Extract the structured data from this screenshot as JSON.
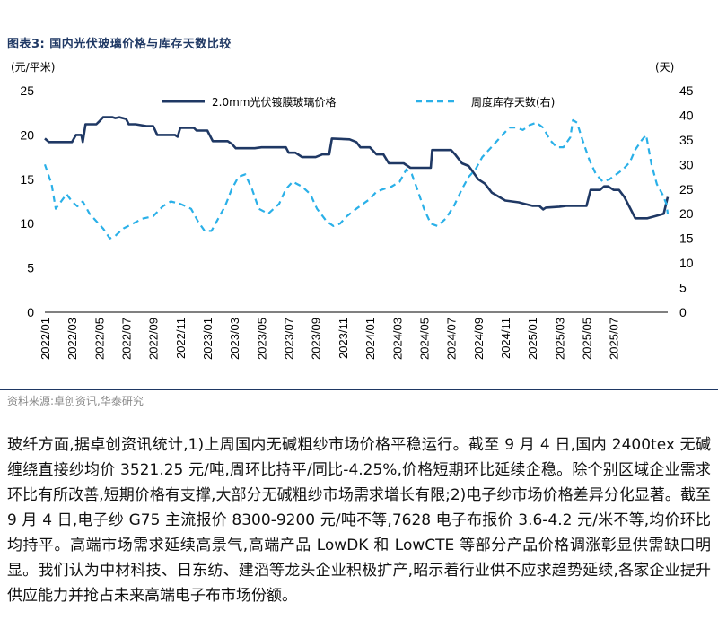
{
  "figure_title": "图表3:  国内光伏玻璃价格与库存天数比较",
  "source": "资料来源:卓创资讯,华泰研究",
  "body_text": "玻纤方面,据卓创资讯统计,1)上周国内无碱粗纱市场价格平稳运行。截至 9 月 4 日,国内 2400tex 无碱缠绕直接纱均价 3521.25 元/吨,周环比持平/同比-4.25%,价格短期环比延续企稳。除个别区域企业需求环比有所改善,短期价格有支撑,大部分无碱粗纱市场需求增长有限;2)电子纱市场价格差异分化显著。截至 9 月 4 日,电子纱 G75 主流报价 8300-9200 元/吨不等,7628 电子布报价 3.6-4.2 元/米不等,均价环比均持平。高端市场需求延续高景气,高端产品 LowDK 和 LowCTE 等部分产品价格调涨彰显供需缺口明显。我们认为中材科技、日东纺、建滔等龙头企业积极扩产,昭示着行业供不应求趋势延续,各家企业提升供应能力并抢占未来高端电子布市场份额。",
  "colors": {
    "title": "#1f3864",
    "price_line": "#1f3864",
    "days_line": "#2ab0e8",
    "divider": "#1f3864",
    "source_text": "#8a8a8a"
  },
  "chart_data": {
    "type": "line",
    "y_left_unit": "(元/平米)",
    "y_right_unit": "(天)",
    "y_left_ticks": [
      "0",
      "5",
      "10",
      "15",
      "20",
      "25"
    ],
    "y_right_ticks": [
      "0",
      "5",
      "10",
      "15",
      "20",
      "25",
      "30",
      "35",
      "40",
      "45"
    ],
    "ylim_left": [
      0,
      25
    ],
    "ylim_right": [
      0,
      45
    ],
    "x_ticks": [
      "2022/01",
      "2022/03",
      "2022/05",
      "2022/07",
      "2022/09",
      "2022/11",
      "2023/01",
      "2023/03",
      "2023/05",
      "2023/07",
      "2023/09",
      "2023/11",
      "2024/01",
      "2024/03",
      "2024/05",
      "2024/07",
      "2024/09",
      "2024/11",
      "2025/01",
      "2025/03",
      "2025/05",
      "2025/07"
    ],
    "x_range_months": [
      0,
      45
    ],
    "legend_position": "top",
    "grid": false,
    "series": [
      {
        "name": "2.0mm光伏镀膜玻璃价格",
        "axis": "left",
        "style": "solid",
        "points": [
          [
            0.0,
            19.6
          ],
          [
            0.3,
            19.2
          ],
          [
            1.0,
            19.2
          ],
          [
            1.5,
            19.2
          ],
          [
            2.0,
            19.2
          ],
          [
            2.3,
            20.0
          ],
          [
            2.7,
            20.0
          ],
          [
            2.8,
            19.2
          ],
          [
            3.0,
            21.2
          ],
          [
            3.5,
            21.2
          ],
          [
            3.8,
            21.2
          ],
          [
            4.0,
            21.5
          ],
          [
            4.3,
            22.0
          ],
          [
            5.0,
            22.0
          ],
          [
            5.2,
            21.9
          ],
          [
            5.5,
            22.0
          ],
          [
            6.0,
            21.8
          ],
          [
            6.2,
            21.2
          ],
          [
            6.7,
            21.2
          ],
          [
            7.5,
            21.0
          ],
          [
            8.0,
            21.0
          ],
          [
            8.3,
            20.0
          ],
          [
            9.0,
            20.0
          ],
          [
            9.6,
            20.0
          ],
          [
            9.8,
            19.8
          ],
          [
            10.0,
            20.8
          ],
          [
            10.5,
            20.8
          ],
          [
            11.0,
            20.8
          ],
          [
            11.2,
            20.5
          ],
          [
            12.0,
            20.5
          ],
          [
            12.4,
            19.3
          ],
          [
            13.0,
            19.3
          ],
          [
            13.5,
            19.3
          ],
          [
            13.8,
            19.0
          ],
          [
            14.1,
            18.5
          ],
          [
            15.0,
            18.5
          ],
          [
            15.5,
            18.5
          ],
          [
            16.0,
            18.6
          ],
          [
            17.8,
            18.6
          ],
          [
            18.0,
            18.0
          ],
          [
            18.5,
            18.0
          ],
          [
            19.0,
            17.5
          ],
          [
            20.0,
            17.5
          ],
          [
            20.5,
            17.8
          ],
          [
            21.0,
            17.8
          ],
          [
            21.2,
            19.6
          ],
          [
            22.5,
            19.5
          ],
          [
            23.0,
            19.2
          ],
          [
            23.3,
            18.6
          ],
          [
            24.0,
            18.6
          ],
          [
            24.5,
            17.8
          ],
          [
            25.0,
            17.8
          ],
          [
            25.4,
            16.8
          ],
          [
            26.5,
            16.8
          ],
          [
            27.0,
            16.3
          ],
          [
            28.5,
            16.3
          ],
          [
            28.6,
            18.3
          ],
          [
            29.5,
            18.3
          ],
          [
            30.0,
            18.3
          ],
          [
            30.3,
            17.8
          ],
          [
            30.8,
            16.8
          ],
          [
            31.3,
            16.5
          ],
          [
            32.0,
            15.0
          ],
          [
            32.5,
            14.5
          ],
          [
            33.0,
            13.5
          ],
          [
            34.0,
            12.6
          ],
          [
            35.0,
            12.4
          ],
          [
            35.5,
            12.2
          ],
          [
            36.0,
            12.0
          ],
          [
            36.5,
            12.0
          ],
          [
            36.8,
            11.6
          ],
          [
            37.0,
            11.8
          ],
          [
            38.0,
            11.9
          ],
          [
            38.5,
            12.0
          ],
          [
            40.0,
            12.0
          ],
          [
            40.3,
            13.8
          ],
          [
            41.0,
            13.8
          ],
          [
            41.3,
            14.2
          ],
          [
            41.6,
            14.2
          ],
          [
            42.0,
            13.8
          ],
          [
            42.4,
            13.8
          ],
          [
            42.8,
            13.0
          ],
          [
            43.3,
            11.5
          ],
          [
            43.6,
            10.6
          ],
          [
            44.5,
            10.6
          ],
          [
            45.0,
            10.8
          ],
          [
            45.7,
            11.1
          ],
          [
            46.0,
            13.0
          ]
        ]
      },
      {
        "name": "周度库存天数(右)",
        "axis": "right",
        "style": "dashed",
        "points": [
          [
            0.0,
            30.0
          ],
          [
            0.5,
            26.0
          ],
          [
            0.8,
            21.0
          ],
          [
            1.2,
            22.5
          ],
          [
            1.6,
            24.0
          ],
          [
            2.0,
            22.5
          ],
          [
            2.4,
            21.5
          ],
          [
            2.8,
            22.5
          ],
          [
            3.3,
            20.0
          ],
          [
            3.8,
            18.5
          ],
          [
            4.3,
            17.0
          ],
          [
            4.8,
            15.0
          ],
          [
            5.2,
            15.5
          ],
          [
            5.8,
            17.0
          ],
          [
            6.5,
            18.0
          ],
          [
            7.2,
            19.0
          ],
          [
            8.0,
            19.5
          ],
          [
            8.7,
            21.5
          ],
          [
            9.3,
            22.5
          ],
          [
            10.0,
            22.0
          ],
          [
            10.8,
            21.0
          ],
          [
            11.3,
            18.5
          ],
          [
            11.8,
            16.5
          ],
          [
            12.3,
            16.5
          ],
          [
            12.8,
            19.0
          ],
          [
            13.3,
            21.5
          ],
          [
            13.8,
            25.0
          ],
          [
            14.3,
            27.5
          ],
          [
            14.8,
            28.0
          ],
          [
            15.3,
            25.0
          ],
          [
            15.8,
            21.0
          ],
          [
            16.5,
            20.0
          ],
          [
            17.3,
            22.0
          ],
          [
            17.8,
            25.0
          ],
          [
            18.3,
            26.5
          ],
          [
            19.0,
            25.5
          ],
          [
            19.6,
            24.0
          ],
          [
            20.1,
            21.0
          ],
          [
            20.8,
            18.5
          ],
          [
            21.3,
            17.5
          ],
          [
            21.8,
            18.0
          ],
          [
            22.3,
            19.5
          ],
          [
            23.0,
            21.0
          ],
          [
            24.0,
            23.0
          ],
          [
            24.5,
            24.5
          ],
          [
            25.0,
            25.0
          ],
          [
            25.6,
            25.5
          ],
          [
            26.2,
            26.5
          ],
          [
            26.7,
            29.0
          ],
          [
            27.1,
            28.0
          ],
          [
            27.5,
            25.0
          ],
          [
            28.0,
            21.0
          ],
          [
            28.5,
            18.0
          ],
          [
            29.0,
            17.5
          ],
          [
            29.6,
            19.0
          ],
          [
            30.2,
            21.5
          ],
          [
            30.8,
            25.0
          ],
          [
            31.3,
            27.5
          ],
          [
            31.8,
            29.0
          ],
          [
            32.3,
            31.5
          ],
          [
            32.8,
            33.0
          ],
          [
            33.3,
            34.5
          ],
          [
            33.8,
            36.0
          ],
          [
            34.3,
            37.5
          ],
          [
            34.8,
            37.5
          ],
          [
            35.3,
            37.0
          ],
          [
            35.8,
            38.0
          ],
          [
            36.3,
            38.5
          ],
          [
            36.8,
            37.5
          ],
          [
            37.3,
            35.0
          ],
          [
            37.8,
            33.5
          ],
          [
            38.3,
            33.5
          ],
          [
            38.8,
            35.5
          ],
          [
            39.0,
            39.0
          ],
          [
            39.3,
            38.5
          ],
          [
            39.7,
            35.0
          ],
          [
            40.2,
            31.0
          ],
          [
            40.7,
            28.0
          ],
          [
            41.2,
            26.5
          ],
          [
            41.7,
            27.0
          ],
          [
            42.2,
            28.0
          ],
          [
            42.7,
            29.0
          ],
          [
            43.2,
            30.5
          ],
          [
            43.6,
            33.0
          ],
          [
            44.1,
            35.0
          ],
          [
            44.4,
            36.0
          ],
          [
            44.8,
            30.0
          ],
          [
            45.2,
            26.0
          ],
          [
            45.6,
            24.0
          ],
          [
            45.9,
            22.0
          ],
          [
            46.0,
            20.0
          ]
        ]
      }
    ]
  }
}
